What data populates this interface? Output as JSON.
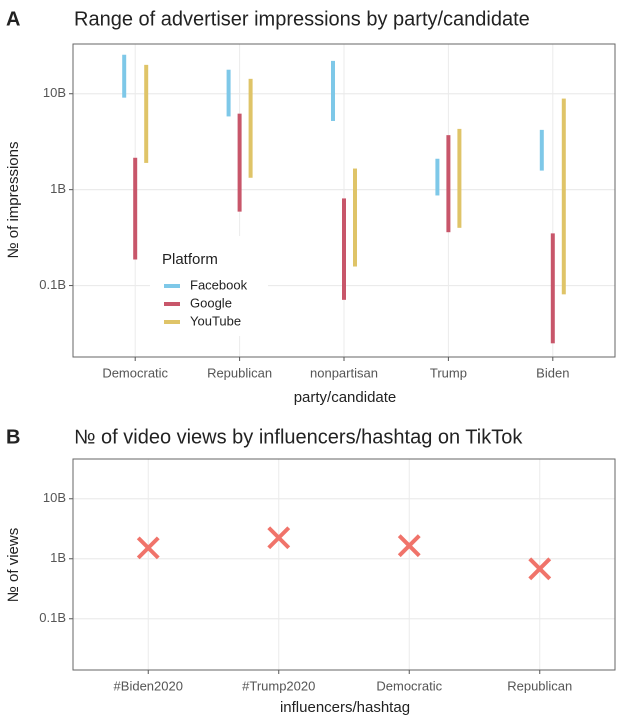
{
  "chart_data": [
    {
      "type": "range",
      "panel_label": "A",
      "title": "Range of advertiser impressions by party/candidate",
      "x_label": "party/candidate",
      "y_label": "№ of impressions",
      "log_scale": true,
      "grid": true,
      "categories": [
        "Democratic",
        "Republican",
        "nonpartisan",
        "Trump",
        "Biden"
      ],
      "series": [
        {
          "name": "Facebook",
          "color": "#7ec8e8",
          "low": [
            9100000000,
            5800000000,
            5200000000,
            870000000,
            1580000000
          ],
          "high": [
            25500000000,
            17800000000,
            22000000000,
            2100000000,
            4200000000
          ]
        },
        {
          "name": "Google",
          "color": "#c8566a",
          "low": [
            187000000,
            590000000,
            71000000,
            360000000,
            25000000
          ],
          "high": [
            2150000000,
            6200000000,
            810000000,
            3700000000,
            350000000
          ]
        },
        {
          "name": "YouTube",
          "color": "#dfc468",
          "low": [
            1900000000,
            1330000000,
            158000000,
            400000000,
            81000000
          ],
          "high": [
            20000000000,
            14300000000,
            1660000000,
            4300000000,
            8900000000
          ]
        }
      ],
      "legend_title": "Platform",
      "legend": "inside-bottom-left",
      "ylim": [
        18000000,
        33000000000
      ],
      "yticks": [
        {
          "value": 100000000,
          "label": "0.1B"
        },
        {
          "value": 1000000000,
          "label": "1B"
        },
        {
          "value": 10000000000,
          "label": "10B"
        }
      ]
    },
    {
      "type": "scatter",
      "panel_label": "B",
      "title": "№ of video views by influencers/hashtag on TikTok",
      "x_label": "influencers/hashtag",
      "y_label": "№ of views",
      "log_scale": true,
      "grid": true,
      "categories": [
        "#Biden2020",
        "#Trump2020",
        "Democratic",
        "Republican"
      ],
      "values": [
        1520000000,
        2240000000,
        1650000000,
        680000000
      ],
      "color": "#f0736a",
      "ylim": [
        14000000,
        46000000000
      ],
      "yticks": [
        {
          "value": 100000000,
          "label": "0.1B"
        },
        {
          "value": 1000000000,
          "label": "1B"
        },
        {
          "value": 10000000000,
          "label": "10B"
        }
      ]
    }
  ]
}
